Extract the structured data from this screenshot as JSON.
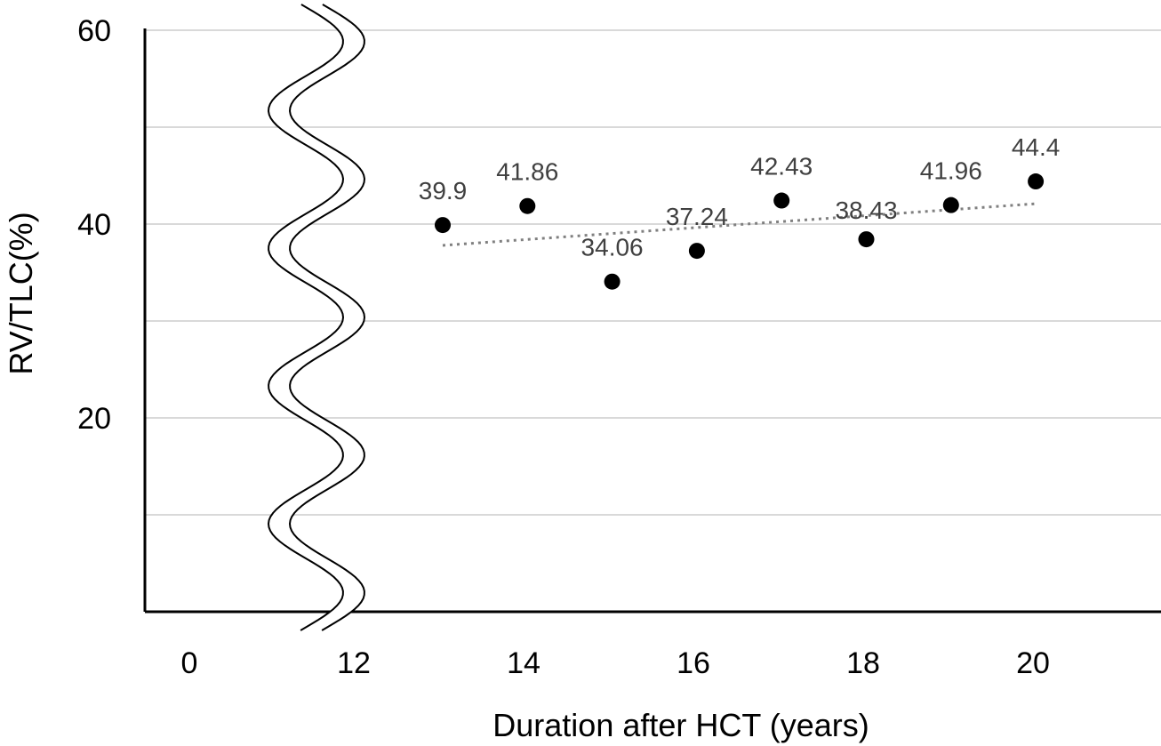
{
  "chart_data": {
    "type": "scatter",
    "title": "",
    "xlabel": "Duration after HCT (years)",
    "ylabel": "RV/TLC(%)",
    "x_tick_labels": [
      "0",
      "12",
      "14",
      "16",
      "18",
      "20"
    ],
    "y_tick_labels": [
      "20",
      "40",
      "60"
    ],
    "ylim": [
      0,
      60
    ],
    "y_gridlines": [
      10,
      20,
      30,
      40,
      50,
      60
    ],
    "x_axis_break": "between 0 and 12",
    "trendline": {
      "style": "dotted",
      "kind": "linear",
      "start": [
        13,
        37.8
      ],
      "end": [
        20,
        42.1
      ]
    },
    "points": [
      {
        "x": 13,
        "y": 39.9,
        "label": "39.9"
      },
      {
        "x": 14,
        "y": 41.86,
        "label": "41.86"
      },
      {
        "x": 15,
        "y": 34.06,
        "label": "34.06"
      },
      {
        "x": 16,
        "y": 37.24,
        "label": "37.24"
      },
      {
        "x": 17,
        "y": 42.43,
        "label": "42.43"
      },
      {
        "x": 18,
        "y": 38.43,
        "label": "38.43"
      },
      {
        "x": 19,
        "y": 41.96,
        "label": "41.96"
      },
      {
        "x": 20,
        "y": 44.4,
        "label": "44.4"
      }
    ],
    "marker_color": "#000000",
    "trendline_color": "#808080",
    "grid": true
  }
}
